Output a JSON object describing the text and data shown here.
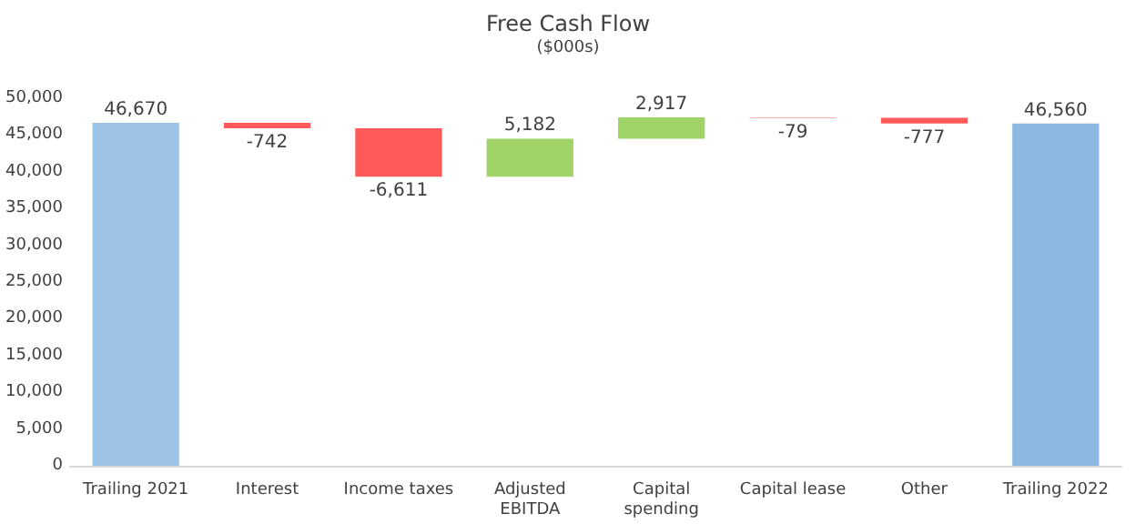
{
  "chart_data": {
    "type": "bar",
    "title": "Free Cash Flow",
    "subtitle": "($000s)",
    "categories": [
      "Trailing 2021",
      "Interest",
      "Income taxes",
      "Adjusted\nEBITDA",
      "Capital\nspending",
      "Capital lease",
      "Other",
      "Trailing 2022"
    ],
    "values": [
      46670,
      -742,
      -6611,
      5182,
      2917,
      -79,
      -777,
      46560
    ],
    "base": [
      0,
      46670,
      45928,
      39317,
      44499,
      47416,
      47337,
      0
    ],
    "colors": [
      "#9dc3e6",
      "#ff5a5a",
      "#ff5a5a",
      "#a0d468",
      "#a0d468",
      "#ff5a5a",
      "#ff5a5a",
      "#8db8e2"
    ],
    "value_labels": [
      "46,670",
      "-742",
      "-6,611",
      "5,182",
      "2,917",
      "-79",
      "-777",
      "46,560"
    ],
    "ylim": [
      0,
      50000
    ],
    "yticks": [
      {
        "value": 0,
        "label": "0"
      },
      {
        "value": 5000,
        "label": "5,000"
      },
      {
        "value": 10000,
        "label": "10,000"
      },
      {
        "value": 15000,
        "label": "15,000"
      },
      {
        "value": 20000,
        "label": "20,000"
      },
      {
        "value": 25000,
        "label": "25,000"
      },
      {
        "value": 30000,
        "label": "30,000"
      },
      {
        "value": 35000,
        "label": "35,000"
      },
      {
        "value": 40000,
        "label": "40,000"
      },
      {
        "value": 45000,
        "label": "45,000"
      },
      {
        "value": 50000,
        "label": "50,000"
      }
    ],
    "grid": false
  }
}
